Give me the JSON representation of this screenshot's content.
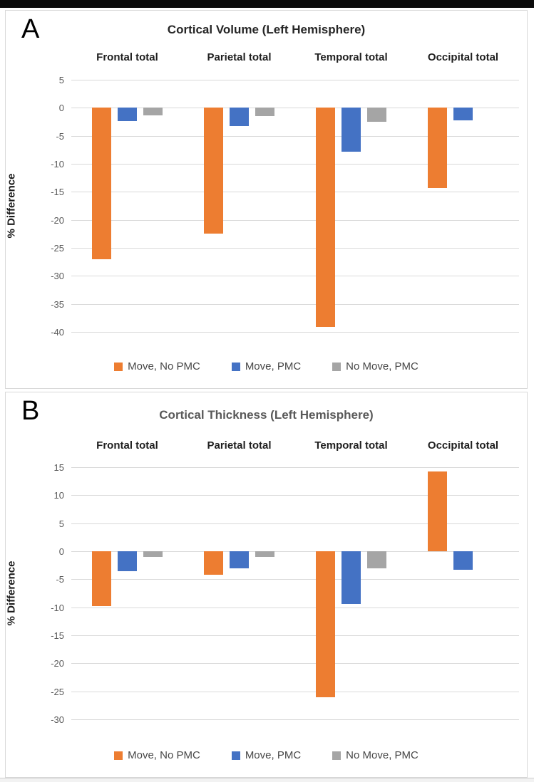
{
  "frame": {
    "panel_a_label": "A",
    "panel_b_label": "B"
  },
  "chart_data": [
    {
      "type": "bar",
      "panel_label": "A",
      "title": "Cortical Volume (Left Hemisphere)",
      "ylabel": "% Difference",
      "categories": [
        "Frontal total",
        "Parietal total",
        "Temporal total",
        "Occipital total"
      ],
      "series": [
        {
          "name": "Move, No PMC",
          "color": "#ED7D31",
          "values": [
            -27,
            -22.4,
            -39.1,
            -14.3
          ]
        },
        {
          "name": "Move, PMC",
          "color": "#4472C4",
          "values": [
            -2.4,
            -3.2,
            -7.8,
            -2.3
          ]
        },
        {
          "name": "No Move, PMC",
          "color": "#A5A5A5",
          "values": [
            -1.4,
            -1.5,
            -2.5,
            0
          ]
        }
      ],
      "ylim": [
        -40,
        5
      ],
      "ytick_step": 5,
      "grid": true,
      "legend_position": "bottom",
      "title_color": "#262626",
      "grid_color": "#d9d9d9"
    },
    {
      "type": "bar",
      "panel_label": "B",
      "title": "Cortical Thickness (Left Hemisphere)",
      "ylabel": "% Difference",
      "categories": [
        "Frontal total",
        "Parietal total",
        "Temporal total",
        "Occipital total"
      ],
      "series": [
        {
          "name": "Move, No PMC",
          "color": "#ED7D31",
          "values": [
            -9.8,
            -4.2,
            -26,
            14.3
          ]
        },
        {
          "name": "Move, PMC",
          "color": "#4472C4",
          "values": [
            -3.5,
            -3,
            -9.4,
            -3.3
          ]
        },
        {
          "name": "No Move, PMC",
          "color": "#A5A5A5",
          "values": [
            -1,
            -1,
            -3,
            0
          ]
        }
      ],
      "ylim": [
        -30,
        15
      ],
      "ytick_step": 5,
      "grid": true,
      "legend_position": "bottom",
      "title_color": "#595959",
      "grid_color": "#d9d9d9"
    }
  ]
}
